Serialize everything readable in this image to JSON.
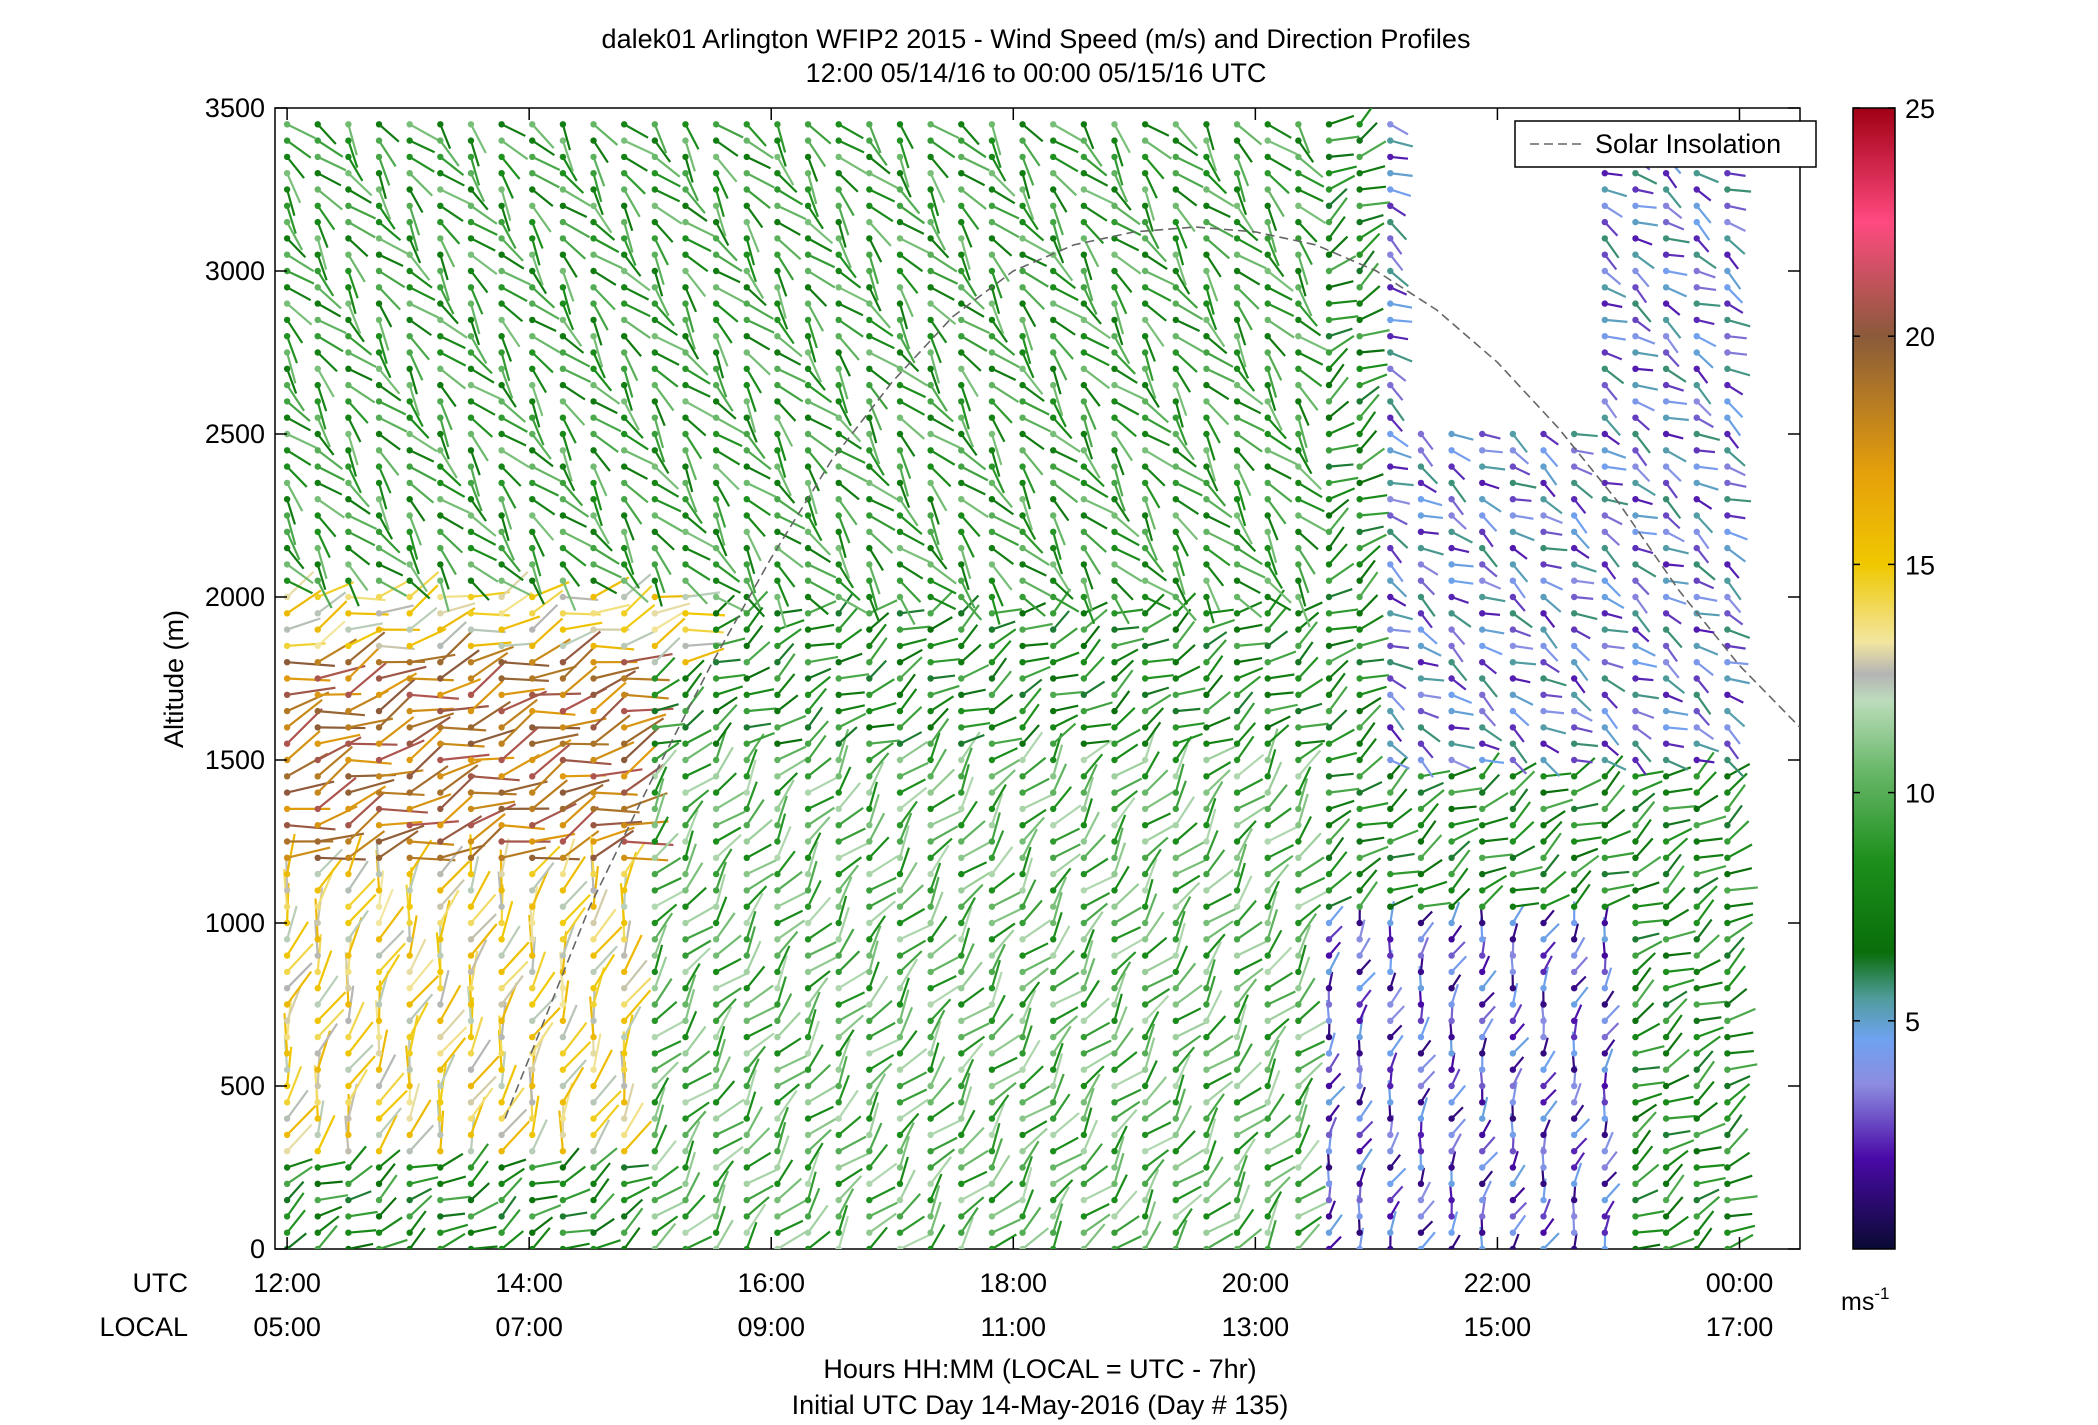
{
  "chart_data": {
    "type": "wind barb profile",
    "title": "dalek01 Arlington WFIP2 2015 - Wind Speed (m/s) and Direction Profiles",
    "subtitle": "12:00 05/14/16 to 00:00 05/15/16  UTC",
    "ylabel": "Altitude (m)",
    "ylim": [
      0,
      3500
    ],
    "yticks": [
      "0",
      "500",
      "1000",
      "1500",
      "2000",
      "2500",
      "3000",
      "3500"
    ],
    "xlim_hours_utc": [
      11.9,
      24.5
    ],
    "row_labels": {
      "utc": "UTC",
      "local": "LOCAL"
    },
    "xticks": [
      {
        "hour": 12,
        "utc": "12:00",
        "local": "05:00"
      },
      {
        "hour": 14,
        "utc": "14:00",
        "local": "07:00"
      },
      {
        "hour": 16,
        "utc": "16:00",
        "local": "09:00"
      },
      {
        "hour": 18,
        "utc": "18:00",
        "local": "11:00"
      },
      {
        "hour": 20,
        "utc": "20:00",
        "local": "13:00"
      },
      {
        "hour": 22,
        "utc": "22:00",
        "local": "15:00"
      },
      {
        "hour": 24,
        "utc": "00:00",
        "local": "17:00"
      }
    ],
    "xlabel": "Hours HH:MM  (LOCAL = UTC - 7hr)",
    "xlabel2": "Initial UTC Day 14-May-2016 (Day # 135)",
    "legend": {
      "entries": [
        "Solar Insolation"
      ],
      "placement": "top-right",
      "style": "dashed gray"
    },
    "colorbar": {
      "range": [
        0,
        25
      ],
      "ticks": [
        "5",
        "10",
        "15",
        "20",
        "25"
      ],
      "unit": "ms",
      "unit_sup": "-1",
      "stops": [
        {
          "v": 0,
          "c": "#0a0a33"
        },
        {
          "v": 2,
          "c": "#4a0aa8"
        },
        {
          "v": 3.6,
          "c": "#8c8ce0"
        },
        {
          "v": 4.6,
          "c": "#6fa2f0"
        },
        {
          "v": 5.5,
          "c": "#4f9c9c"
        },
        {
          "v": 6.5,
          "c": "#0a6e0a"
        },
        {
          "v": 8.5,
          "c": "#1c8f1c"
        },
        {
          "v": 10.5,
          "c": "#6ab86a"
        },
        {
          "v": 12,
          "c": "#bcdcbc"
        },
        {
          "v": 12.6,
          "c": "#b4b4b4"
        },
        {
          "v": 13.3,
          "c": "#f2e6a0"
        },
        {
          "v": 15,
          "c": "#f0c800"
        },
        {
          "v": 17,
          "c": "#e6a00a"
        },
        {
          "v": 20,
          "c": "#8a5a3a"
        },
        {
          "v": 22.5,
          "c": "#ff4a80"
        },
        {
          "v": 25,
          "c": "#a00014"
        }
      ]
    },
    "series": [
      {
        "name": "Solar Insolation",
        "kind": "dashed-line",
        "color": "#666666",
        "x": [
          13.8,
          14.5,
          15.0,
          15.5,
          16.0,
          16.5,
          17.0,
          17.5,
          18.0,
          18.5,
          19.0,
          19.5,
          20.0,
          20.5,
          21.0,
          21.5,
          22.0,
          22.5,
          23.0,
          23.5,
          24.0,
          24.5
        ],
        "y": [
          400,
          1050,
          1430,
          1790,
          2120,
          2420,
          2660,
          2860,
          3000,
          3080,
          3120,
          3135,
          3120,
          3080,
          3000,
          2880,
          2720,
          2520,
          2290,
          2020,
          1790,
          1600
        ]
      }
    ],
    "wind_profiles": {
      "times_utc_range": [
        12.0,
        23.9
      ],
      "profile_count": 48,
      "altitude_levels_m": [
        0,
        3480
      ],
      "level_spacing_m": 50,
      "speed_regimes": [
        {
          "time_utc": [
            12.0,
            15.0
          ],
          "altitude_m": [
            1200,
            1800
          ],
          "speed_ms": 19,
          "direction_deg": 250
        },
        {
          "time_utc": [
            12.0,
            15.0
          ],
          "altitude_m": [
            300,
            1200
          ],
          "speed_ms": 14,
          "direction_deg": 200
        },
        {
          "time_utc": [
            12.0,
            15.5
          ],
          "altitude_m": [
            1800,
            2000
          ],
          "speed_ms": 14,
          "direction_deg": 250
        },
        {
          "time_utc": [
            12.0,
            20.5
          ],
          "altitude_m": [
            2000,
            3500
          ],
          "speed_ms": 9,
          "direction_deg": 320
        },
        {
          "time_utc": [
            15.0,
            20.5
          ],
          "altitude_m": [
            0,
            1500
          ],
          "speed_ms": 10,
          "direction_deg": 220
        },
        {
          "time_utc": [
            20.5,
            23.0
          ],
          "altitude_m": [
            0,
            1000
          ],
          "speed_ms": 3,
          "direction_deg": 200
        },
        {
          "time_utc": [
            21.0,
            24.0
          ],
          "altitude_m": [
            1500,
            3500
          ],
          "speed_ms": 4,
          "direction_deg": 300
        }
      ]
    }
  }
}
